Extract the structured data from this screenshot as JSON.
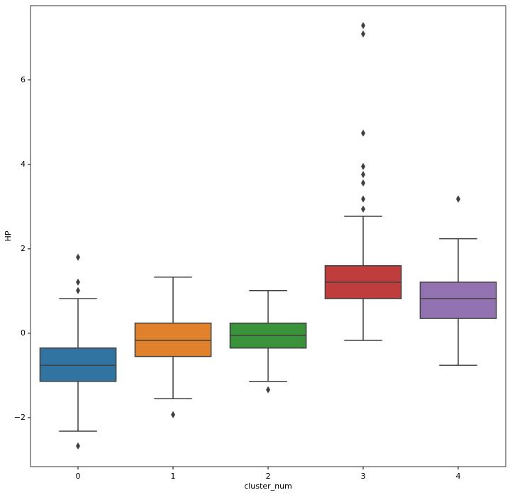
{
  "chart_data": {
    "type": "box",
    "x_label": "cluster_num",
    "y_label": "HP",
    "categories": [
      "0",
      "1",
      "2",
      "3",
      "4"
    ],
    "colors": [
      "#3274a1",
      "#e1812c",
      "#3a923a",
      "#c03d3e",
      "#9372b2"
    ],
    "boxes": [
      {
        "min": -2.32,
        "q1": -1.14,
        "median": -0.76,
        "q3": -0.35,
        "max": 0.82,
        "outliers": [
          1.8,
          1.21,
          1.01,
          -2.67
        ]
      },
      {
        "min": -1.55,
        "q1": -0.55,
        "median": -0.17,
        "q3": 0.24,
        "max": 1.33,
        "outliers": [
          -1.93
        ]
      },
      {
        "min": -1.14,
        "q1": -0.35,
        "median": -0.05,
        "q3": 0.24,
        "max": 1.01,
        "outliers": [
          -1.34
        ]
      },
      {
        "min": -0.17,
        "q1": 0.82,
        "median": 1.21,
        "q3": 1.6,
        "max": 2.77,
        "outliers": [
          7.29,
          7.09,
          4.74,
          3.95,
          3.76,
          3.56,
          3.18,
          2.94
        ]
      },
      {
        "min": -0.76,
        "q1": 0.35,
        "median": 0.82,
        "q3": 1.21,
        "max": 2.24,
        "outliers": [
          3.18,
          3.18
        ]
      }
    ],
    "ylim": [
      -3.16,
      7.76
    ],
    "yticks": [
      {
        "value": -2,
        "label": "−2"
      },
      0,
      2,
      4,
      6
    ]
  }
}
